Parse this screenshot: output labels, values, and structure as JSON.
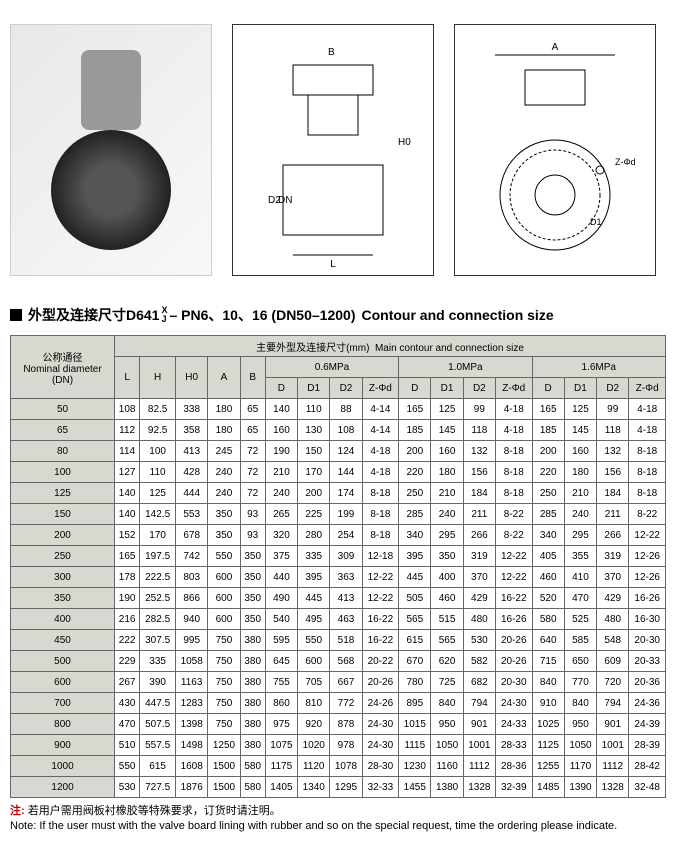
{
  "section_title_cn": "外型及连接尺寸D641",
  "section_title_frac_top": "X",
  "section_title_frac_bot": "J",
  "section_title_mid": "– PN6、10、16 (DN50–1200)",
  "section_title_en": "Contour and connection size",
  "header": {
    "dn_cn": "公称通径",
    "dn_en": "Nominal diameter",
    "dn_unit": "(DN)",
    "main_cn": "主要外型及连接尺寸(mm)",
    "main_en": "Main contour and connection size",
    "cols_basic": [
      "L",
      "H",
      "H0",
      "A",
      "B"
    ],
    "pressure_groups": [
      "0.6MPa",
      "1.0MPa",
      "1.6MPa"
    ],
    "pressure_cols": [
      "D",
      "D1",
      "D2",
      "Z-Φd"
    ]
  },
  "rows": [
    {
      "dn": "50",
      "L": "108",
      "H": "82.5",
      "H0": "338",
      "A": "180",
      "B": "65",
      "p06": [
        "140",
        "110",
        "88",
        "4-14"
      ],
      "p10": [
        "165",
        "125",
        "99",
        "4-18"
      ],
      "p16": [
        "165",
        "125",
        "99",
        "4-18"
      ]
    },
    {
      "dn": "65",
      "L": "112",
      "H": "92.5",
      "H0": "358",
      "A": "180",
      "B": "65",
      "p06": [
        "160",
        "130",
        "108",
        "4-14"
      ],
      "p10": [
        "185",
        "145",
        "118",
        "4-18"
      ],
      "p16": [
        "185",
        "145",
        "118",
        "4-18"
      ]
    },
    {
      "dn": "80",
      "L": "114",
      "H": "100",
      "H0": "413",
      "A": "245",
      "B": "72",
      "p06": [
        "190",
        "150",
        "124",
        "4-18"
      ],
      "p10": [
        "200",
        "160",
        "132",
        "8-18"
      ],
      "p16": [
        "200",
        "160",
        "132",
        "8-18"
      ]
    },
    {
      "dn": "100",
      "L": "127",
      "H": "110",
      "H0": "428",
      "A": "240",
      "B": "72",
      "p06": [
        "210",
        "170",
        "144",
        "4-18"
      ],
      "p10": [
        "220",
        "180",
        "156",
        "8-18"
      ],
      "p16": [
        "220",
        "180",
        "156",
        "8-18"
      ]
    },
    {
      "dn": "125",
      "L": "140",
      "H": "125",
      "H0": "444",
      "A": "240",
      "B": "72",
      "p06": [
        "240",
        "200",
        "174",
        "8-18"
      ],
      "p10": [
        "250",
        "210",
        "184",
        "8-18"
      ],
      "p16": [
        "250",
        "210",
        "184",
        "8-18"
      ]
    },
    {
      "dn": "150",
      "L": "140",
      "H": "142.5",
      "H0": "553",
      "A": "350",
      "B": "93",
      "p06": [
        "265",
        "225",
        "199",
        "8-18"
      ],
      "p10": [
        "285",
        "240",
        "211",
        "8-22"
      ],
      "p16": [
        "285",
        "240",
        "211",
        "8-22"
      ]
    },
    {
      "dn": "200",
      "L": "152",
      "H": "170",
      "H0": "678",
      "A": "350",
      "B": "93",
      "p06": [
        "320",
        "280",
        "254",
        "8-18"
      ],
      "p10": [
        "340",
        "295",
        "266",
        "8-22"
      ],
      "p16": [
        "340",
        "295",
        "266",
        "12-22"
      ]
    },
    {
      "dn": "250",
      "L": "165",
      "H": "197.5",
      "H0": "742",
      "A": "550",
      "B": "350",
      "p06": [
        "375",
        "335",
        "309",
        "12-18"
      ],
      "p10": [
        "395",
        "350",
        "319",
        "12-22"
      ],
      "p16": [
        "405",
        "355",
        "319",
        "12-26"
      ]
    },
    {
      "dn": "300",
      "L": "178",
      "H": "222.5",
      "H0": "803",
      "A": "600",
      "B": "350",
      "p06": [
        "440",
        "395",
        "363",
        "12-22"
      ],
      "p10": [
        "445",
        "400",
        "370",
        "12-22"
      ],
      "p16": [
        "460",
        "410",
        "370",
        "12-26"
      ]
    },
    {
      "dn": "350",
      "L": "190",
      "H": "252.5",
      "H0": "866",
      "A": "600",
      "B": "350",
      "p06": [
        "490",
        "445",
        "413",
        "12-22"
      ],
      "p10": [
        "505",
        "460",
        "429",
        "16-22"
      ],
      "p16": [
        "520",
        "470",
        "429",
        "16-26"
      ]
    },
    {
      "dn": "400",
      "L": "216",
      "H": "282.5",
      "H0": "940",
      "A": "600",
      "B": "350",
      "p06": [
        "540",
        "495",
        "463",
        "16-22"
      ],
      "p10": [
        "565",
        "515",
        "480",
        "16-26"
      ],
      "p16": [
        "580",
        "525",
        "480",
        "16-30"
      ]
    },
    {
      "dn": "450",
      "L": "222",
      "H": "307.5",
      "H0": "995",
      "A": "750",
      "B": "380",
      "p06": [
        "595",
        "550",
        "518",
        "16-22"
      ],
      "p10": [
        "615",
        "565",
        "530",
        "20-26"
      ],
      "p16": [
        "640",
        "585",
        "548",
        "20-30"
      ]
    },
    {
      "dn": "500",
      "L": "229",
      "H": "335",
      "H0": "1058",
      "A": "750",
      "B": "380",
      "p06": [
        "645",
        "600",
        "568",
        "20-22"
      ],
      "p10": [
        "670",
        "620",
        "582",
        "20-26"
      ],
      "p16": [
        "715",
        "650",
        "609",
        "20-33"
      ]
    },
    {
      "dn": "600",
      "L": "267",
      "H": "390",
      "H0": "1163",
      "A": "750",
      "B": "380",
      "p06": [
        "755",
        "705",
        "667",
        "20-26"
      ],
      "p10": [
        "780",
        "725",
        "682",
        "20-30"
      ],
      "p16": [
        "840",
        "770",
        "720",
        "20-36"
      ]
    },
    {
      "dn": "700",
      "L": "430",
      "H": "447.5",
      "H0": "1283",
      "A": "750",
      "B": "380",
      "p06": [
        "860",
        "810",
        "772",
        "24-26"
      ],
      "p10": [
        "895",
        "840",
        "794",
        "24-30"
      ],
      "p16": [
        "910",
        "840",
        "794",
        "24-36"
      ]
    },
    {
      "dn": "800",
      "L": "470",
      "H": "507.5",
      "H0": "1398",
      "A": "750",
      "B": "380",
      "p06": [
        "975",
        "920",
        "878",
        "24-30"
      ],
      "p10": [
        "1015",
        "950",
        "901",
        "24-33"
      ],
      "p16": [
        "1025",
        "950",
        "901",
        "24-39"
      ]
    },
    {
      "dn": "900",
      "L": "510",
      "H": "557.5",
      "H0": "1498",
      "A": "1250",
      "B": "380",
      "p06": [
        "1075",
        "1020",
        "978",
        "24-30"
      ],
      "p10": [
        "1115",
        "1050",
        "1001",
        "28-33"
      ],
      "p16": [
        "1125",
        "1050",
        "1001",
        "28-39"
      ]
    },
    {
      "dn": "1000",
      "L": "550",
      "H": "615",
      "H0": "1608",
      "A": "1500",
      "B": "580",
      "p06": [
        "1175",
        "1120",
        "1078",
        "28-30"
      ],
      "p10": [
        "1230",
        "1160",
        "1112",
        "28-36"
      ],
      "p16": [
        "1255",
        "1170",
        "1112",
        "28-42"
      ]
    },
    {
      "dn": "1200",
      "L": "530",
      "H": "727.5",
      "H0": "1876",
      "A": "1500",
      "B": "580",
      "p06": [
        "1405",
        "1340",
        "1295",
        "32-33"
      ],
      "p10": [
        "1455",
        "1380",
        "1328",
        "32-39"
      ],
      "p16": [
        "1485",
        "1390",
        "1328",
        "32-48"
      ]
    }
  ],
  "note_label": "注:",
  "note_cn": "若用户需用阀板衬橡胶等特殊要求，订货时请注明。",
  "note_en_label": "Note:",
  "note_en": "If the user must with the valve board lining with rubber and so on the special request, time the ordering please indicate."
}
